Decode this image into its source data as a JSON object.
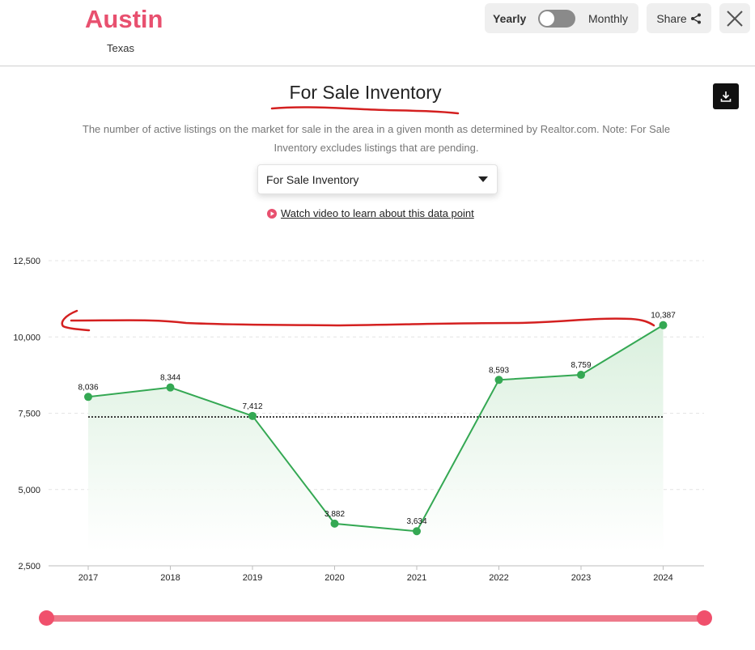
{
  "header": {
    "city": "Austin",
    "state": "Texas",
    "toggle": {
      "yearly_label": "Yearly",
      "monthly_label": "Monthly",
      "selected": "Yearly"
    },
    "share_label": "Share"
  },
  "main": {
    "title": "For Sale Inventory",
    "description": "The number of active listings on the market for sale in the area in a given month as determined by Realtor.com. Note: For Sale Inventory excludes listings that are pending.",
    "select_value": "For Sale Inventory",
    "video_link_label": "Watch video to learn about this data point"
  },
  "colors": {
    "brand": "#e8506f",
    "line": "#34a853",
    "area": "#e3f3e6",
    "annotation": "#d42020",
    "slider": "#ee7a8b"
  },
  "chart_data": {
    "type": "line",
    "title": "For Sale Inventory",
    "categories": [
      "2017",
      "2018",
      "2019",
      "2020",
      "2021",
      "2022",
      "2023",
      "2024"
    ],
    "series": [
      {
        "values": [
          8036,
          8344,
          7412,
          3882,
          3634,
          8593,
          8759,
          10387
        ]
      }
    ],
    "data_labels": [
      "8,036",
      "8,344",
      "7,412",
      "3,882",
      "3,634",
      "8,593",
      "8,759",
      "10,387"
    ],
    "yticks": [
      2500,
      5000,
      7500,
      10000,
      12500
    ],
    "ytick_labels": [
      "2,500",
      "5,000",
      "7,500",
      "10,000",
      "12,500"
    ],
    "ylim": [
      2500,
      12500
    ],
    "average_line": 7380,
    "grid": true,
    "fill": "area"
  },
  "slider": {
    "range_start": "2017",
    "range_end": "2024"
  }
}
